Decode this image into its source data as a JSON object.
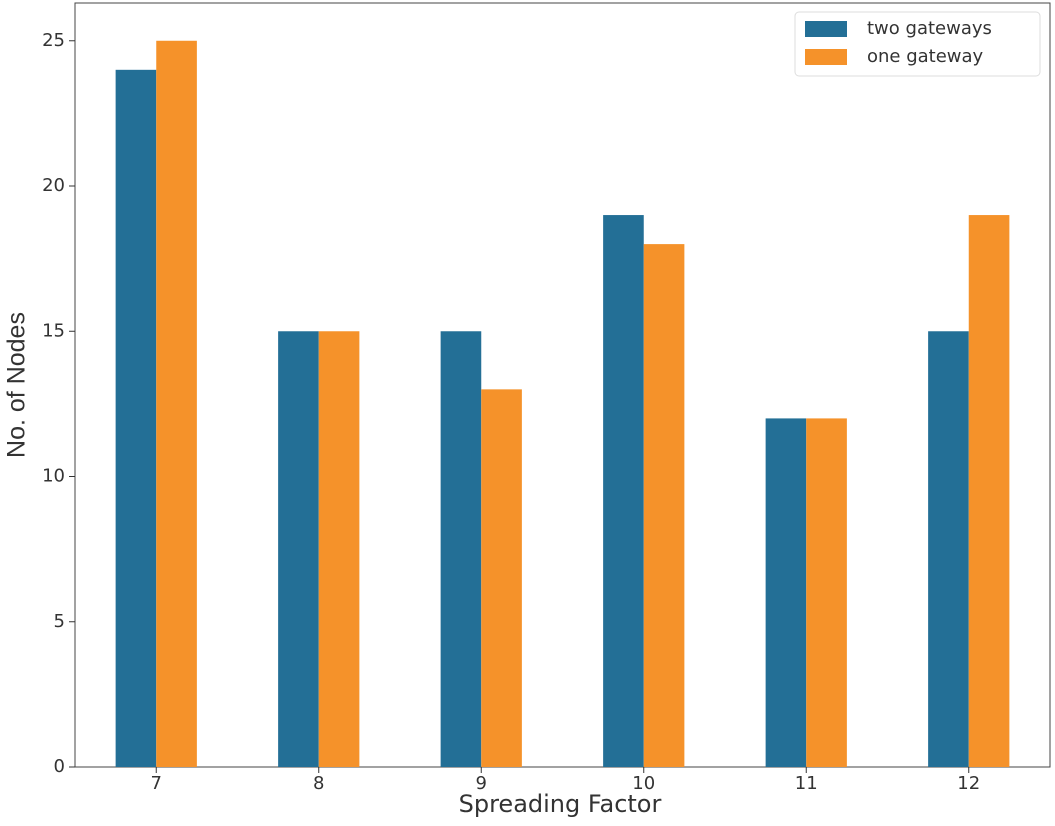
{
  "chart_data": {
    "type": "bar",
    "x_label": "Spreading Factor",
    "y_label": "No. of Nodes",
    "categories": [
      "7",
      "8",
      "9",
      "10",
      "11",
      "12"
    ],
    "series": [
      {
        "name": "two gateways",
        "color": "#236f96",
        "values": [
          24,
          15,
          15,
          19,
          12,
          15
        ]
      },
      {
        "name": "one gateway",
        "color": "#f5922a",
        "values": [
          25,
          15,
          13,
          18,
          12,
          19
        ]
      }
    ],
    "ylim": [
      0,
      26.3
    ],
    "yticks": [
      0,
      5,
      10,
      15,
      20,
      25
    ],
    "grid": false,
    "legend": "upper right"
  }
}
